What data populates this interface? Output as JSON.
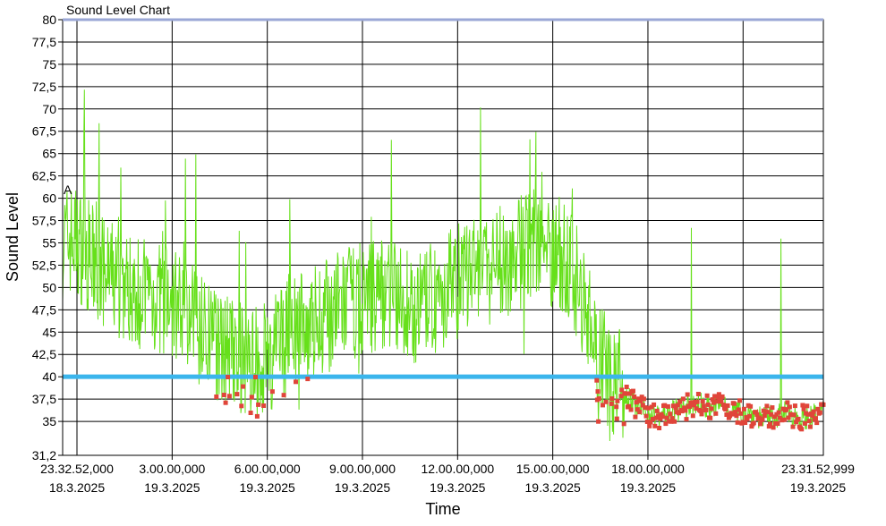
{
  "chart_data": {
    "type": "line",
    "title": "Sound Level Chart",
    "xlabel": "Time",
    "ylabel": "Sound Level",
    "ylim": [
      31.2,
      80
    ],
    "y_ticks": [
      "31,2",
      "35",
      "37,5",
      "40",
      "42,5",
      "45",
      "47,5",
      "50",
      "52,5",
      "55",
      "57,5",
      "60",
      "62,5",
      "65",
      "67,5",
      "70",
      "72,5",
      "75",
      "77,5",
      "80"
    ],
    "y_tick_values": [
      31.2,
      35,
      37.5,
      40,
      42.5,
      45,
      47.5,
      50,
      52.5,
      55,
      57.5,
      60,
      62.5,
      65,
      67.5,
      70,
      72.5,
      75,
      77.5,
      80
    ],
    "x_ticks": [
      {
        "time": "23.32.52,000",
        "date": "18.3.2025"
      },
      {
        "time": "3.00.00,000",
        "date": "19.3.2025"
      },
      {
        "time": "6.00.00,000",
        "date": "19.3.2025"
      },
      {
        "time": "9.00.00,000",
        "date": "19.3.2025"
      },
      {
        "time": "12.00.00,000",
        "date": "19.3.2025"
      },
      {
        "time": "15.00.00,000",
        "date": "19.3.2025"
      },
      {
        "time": "18.00.00,000",
        "date": "19.3.2025"
      },
      {
        "time": "23.31.52,999",
        "date": "19.3.2025"
      }
    ],
    "x_tick_hours": [
      0,
      3.4522,
      6.4522,
      9.4522,
      12.4522,
      15.4522,
      18.4522,
      23.9831
    ],
    "x_range_hours": [
      0,
      23.9831
    ],
    "threshold": 40,
    "marker_label": "A",
    "grid": true,
    "colors": {
      "line": "#66e01a",
      "threshold": "#3bb5ec",
      "marker": "#e0453a",
      "top_line": "#9aa7d6"
    },
    "series": [
      {
        "x": [
          0.0,
          0.3,
          0.6,
          0.9,
          1.2,
          1.6,
          2.0,
          2.4,
          2.8,
          3.2,
          3.6,
          4.0,
          4.4,
          4.8,
          5.2,
          5.6,
          6.0,
          6.4,
          6.8,
          7.2,
          7.6,
          8.0,
          8.4,
          8.8,
          9.2,
          9.6,
          10.0,
          10.4,
          10.8,
          11.2,
          11.6,
          12.0,
          12.4,
          12.8,
          13.2,
          13.6,
          14.0,
          14.4,
          14.8,
          15.2,
          15.6,
          16.0,
          16.4,
          16.8,
          17.2,
          17.6,
          18.0,
          18.4,
          18.8,
          19.2,
          19.6,
          20.0,
          20.4,
          20.8,
          21.2,
          21.6,
          22.0,
          22.4,
          22.8,
          23.2,
          23.6,
          23.98
        ],
        "y": [
          55.0,
          55.5,
          54.5,
          53.0,
          51.5,
          51.0,
          50.0,
          49.5,
          49.0,
          48.5,
          48.0,
          47.0,
          45.0,
          44.0,
          43.0,
          42.0,
          41.5,
          42.0,
          43.5,
          44.5,
          45.5,
          46.5,
          47.0,
          48.0,
          48.5,
          49.0,
          49.5,
          49.5,
          48.0,
          47.5,
          48.5,
          49.5,
          50.5,
          51.5,
          52.0,
          52.5,
          53.0,
          54.0,
          55.0,
          54.5,
          54.0,
          52.5,
          49.0,
          44.0,
          40.5,
          39.0,
          37.0,
          36.0,
          35.5,
          36.0,
          36.5,
          37.0,
          36.5,
          37.0,
          36.0,
          36.0,
          35.5,
          35.5,
          36.0,
          35.5,
          35.5,
          36.0
        ]
      }
    ]
  }
}
